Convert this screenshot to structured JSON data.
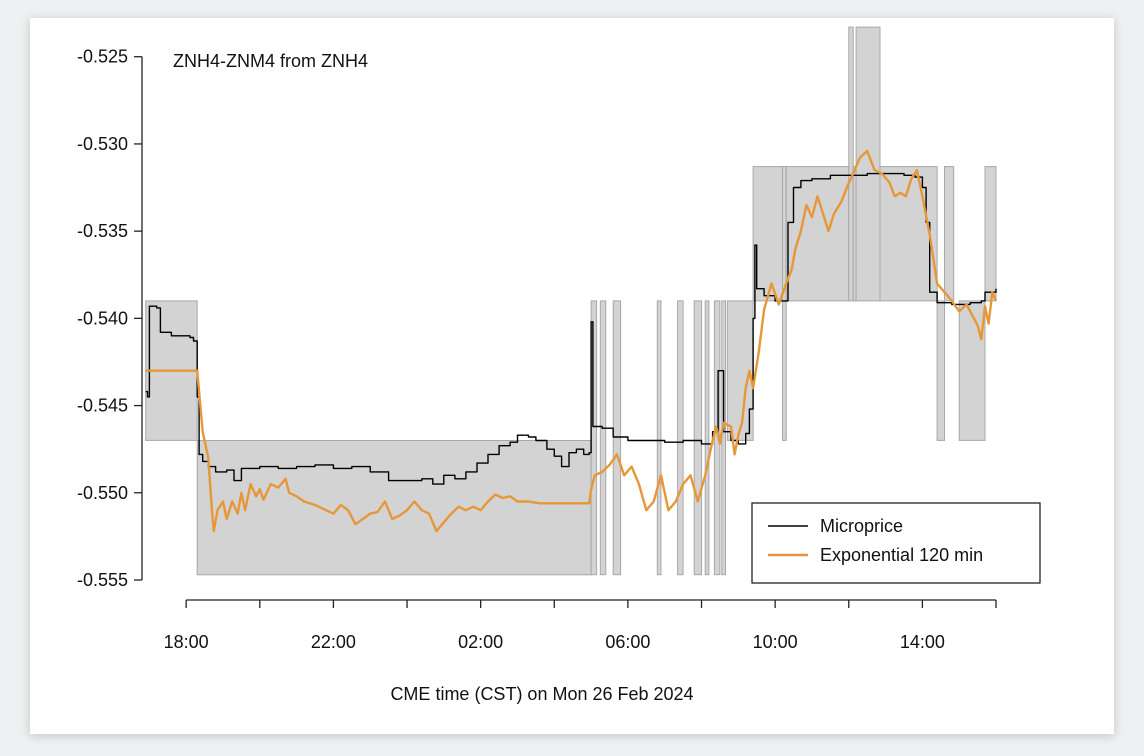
{
  "chart_data": {
    "type": "line",
    "title": "ZNH4-ZNM4 from ZNH4",
    "xlabel": "CME time (CST) on Mon 26 Feb 2024",
    "ylabel": "",
    "x_unit": "hours since 16:00 Sun 25 Feb 2024 CST",
    "xlim": [
      0.8,
      24.0
    ],
    "ylim": [
      -0.555,
      -0.5245
    ],
    "x_ticks": [
      2,
      4,
      6,
      8,
      10,
      12,
      14,
      16,
      18,
      20,
      22,
      24
    ],
    "x_tick_labels": [
      {
        "x": 2,
        "label": "18:00"
      },
      {
        "x": 6,
        "label": "22:00"
      },
      {
        "x": 10,
        "label": "02:00"
      },
      {
        "x": 14,
        "label": "06:00"
      },
      {
        "x": 18,
        "label": "10:00"
      },
      {
        "x": 22,
        "label": "14:00"
      }
    ],
    "y_ticks": [
      -0.555,
      -0.55,
      -0.545,
      -0.54,
      -0.535,
      -0.53,
      -0.525
    ],
    "y_tick_labels": [
      "-0.555",
      "-0.550",
      "-0.545",
      "-0.540",
      "-0.535",
      "-0.530",
      "-0.525"
    ],
    "grid": false,
    "legend": {
      "position": "bottom-right",
      "entries": [
        {
          "name": "Microprice",
          "color": "#000000"
        },
        {
          "name": "Exponential 120 min",
          "color": "#e69838"
        }
      ]
    },
    "bid_ask_bands": [
      {
        "x0": 0.9,
        "x1": 2.3,
        "y0": -0.547,
        "y1": -0.539
      },
      {
        "x0": 2.3,
        "x1": 13.0,
        "y0": -0.5547,
        "y1": -0.547
      },
      {
        "x0": 13.0,
        "x1": 13.15,
        "y0": -0.5547,
        "y1": -0.539
      },
      {
        "x0": 13.25,
        "x1": 13.4,
        "y0": -0.5547,
        "y1": -0.539
      },
      {
        "x0": 13.6,
        "x1": 13.8,
        "y0": -0.5547,
        "y1": -0.539
      },
      {
        "x0": 14.8,
        "x1": 14.9,
        "y0": -0.5547,
        "y1": -0.539
      },
      {
        "x0": 15.35,
        "x1": 15.5,
        "y0": -0.5547,
        "y1": -0.539
      },
      {
        "x0": 15.8,
        "x1": 16.0,
        "y0": -0.5547,
        "y1": -0.539
      },
      {
        "x0": 16.1,
        "x1": 16.2,
        "y0": -0.5547,
        "y1": -0.539
      },
      {
        "x0": 16.35,
        "x1": 16.5,
        "y0": -0.5547,
        "y1": -0.539
      },
      {
        "x0": 16.55,
        "x1": 16.65,
        "y0": -0.5547,
        "y1": -0.539
      },
      {
        "x0": 16.7,
        "x1": 17.4,
        "y0": -0.547,
        "y1": -0.539
      },
      {
        "x0": 17.4,
        "x1": 18.2,
        "y0": -0.539,
        "y1": -0.5313
      },
      {
        "x0": 18.2,
        "x1": 18.3,
        "y0": -0.547,
        "y1": -0.5313
      },
      {
        "x0": 18.3,
        "x1": 20.0,
        "y0": -0.539,
        "y1": -0.5313
      },
      {
        "x0": 20.0,
        "x1": 20.12,
        "y0": -0.539,
        "y1": -0.5233
      },
      {
        "x0": 20.12,
        "x1": 20.2,
        "y0": -0.539,
        "y1": -0.5313
      },
      {
        "x0": 20.2,
        "x1": 20.85,
        "y0": -0.539,
        "y1": -0.5233
      },
      {
        "x0": 20.85,
        "x1": 22.4,
        "y0": -0.539,
        "y1": -0.5313
      },
      {
        "x0": 22.4,
        "x1": 22.6,
        "y0": -0.547,
        "y1": -0.539
      },
      {
        "x0": 22.6,
        "x1": 22.85,
        "y0": -0.539,
        "y1": -0.5313
      },
      {
        "x0": 23.0,
        "x1": 23.7,
        "y0": -0.547,
        "y1": -0.539
      },
      {
        "x0": 23.7,
        "x1": 24.0,
        "y0": -0.539,
        "y1": -0.5313
      }
    ],
    "series": [
      {
        "name": "Microprice",
        "color": "#000000",
        "points": [
          [
            0.9,
            -0.5442
          ],
          [
            0.95,
            -0.5445
          ],
          [
            1.0,
            -0.5393
          ],
          [
            1.2,
            -0.5394
          ],
          [
            1.3,
            -0.5408
          ],
          [
            1.6,
            -0.541
          ],
          [
            2.1,
            -0.5411
          ],
          [
            2.2,
            -0.5413
          ],
          [
            2.3,
            -0.5445
          ],
          [
            2.35,
            -0.5478
          ],
          [
            2.45,
            -0.5482
          ],
          [
            2.6,
            -0.5485
          ],
          [
            2.8,
            -0.5488
          ],
          [
            3.1,
            -0.5487
          ],
          [
            3.3,
            -0.5493
          ],
          [
            3.5,
            -0.5486
          ],
          [
            4.0,
            -0.5485
          ],
          [
            4.5,
            -0.5486
          ],
          [
            5.0,
            -0.5485
          ],
          [
            5.5,
            -0.5484
          ],
          [
            6.0,
            -0.5486
          ],
          [
            6.5,
            -0.5485
          ],
          [
            7.0,
            -0.5488
          ],
          [
            7.5,
            -0.5493
          ],
          [
            8.0,
            -0.5493
          ],
          [
            8.4,
            -0.5492
          ],
          [
            8.7,
            -0.5495
          ],
          [
            9.0,
            -0.549
          ],
          [
            9.3,
            -0.5492
          ],
          [
            9.6,
            -0.5488
          ],
          [
            9.9,
            -0.5483
          ],
          [
            10.2,
            -0.5478
          ],
          [
            10.5,
            -0.5473
          ],
          [
            10.8,
            -0.5471
          ],
          [
            11.0,
            -0.5467
          ],
          [
            11.3,
            -0.5468
          ],
          [
            11.5,
            -0.547
          ],
          [
            11.8,
            -0.5475
          ],
          [
            12.0,
            -0.5479
          ],
          [
            12.2,
            -0.5485
          ],
          [
            12.4,
            -0.5477
          ],
          [
            12.6,
            -0.5475
          ],
          [
            12.8,
            -0.5478
          ],
          [
            12.95,
            -0.5477
          ],
          [
            13.0,
            -0.5402
          ],
          [
            13.05,
            -0.5462
          ],
          [
            13.3,
            -0.5463
          ],
          [
            13.6,
            -0.5468
          ],
          [
            14.0,
            -0.547
          ],
          [
            14.5,
            -0.547
          ],
          [
            15.0,
            -0.5471
          ],
          [
            15.5,
            -0.547
          ],
          [
            16.0,
            -0.5472
          ],
          [
            16.3,
            -0.5465
          ],
          [
            16.45,
            -0.543
          ],
          [
            16.6,
            -0.5465
          ],
          [
            16.8,
            -0.547
          ],
          [
            17.0,
            -0.5472
          ],
          [
            17.2,
            -0.5466
          ],
          [
            17.3,
            -0.5452
          ],
          [
            17.4,
            -0.54
          ],
          [
            17.45,
            -0.5358
          ],
          [
            17.5,
            -0.5383
          ],
          [
            17.7,
            -0.5387
          ],
          [
            18.0,
            -0.539
          ],
          [
            18.2,
            -0.539
          ],
          [
            18.35,
            -0.5345
          ],
          [
            18.5,
            -0.5325
          ],
          [
            18.7,
            -0.5321
          ],
          [
            19.0,
            -0.532
          ],
          [
            19.5,
            -0.5318
          ],
          [
            20.0,
            -0.5318
          ],
          [
            20.5,
            -0.5317
          ],
          [
            21.0,
            -0.5317
          ],
          [
            21.5,
            -0.5318
          ],
          [
            21.8,
            -0.5319
          ],
          [
            22.0,
            -0.5325
          ],
          [
            22.1,
            -0.5345
          ],
          [
            22.2,
            -0.5385
          ],
          [
            22.4,
            -0.5391
          ],
          [
            22.8,
            -0.5392
          ],
          [
            23.0,
            -0.5392
          ],
          [
            23.3,
            -0.5391
          ],
          [
            23.6,
            -0.539
          ],
          [
            23.7,
            -0.5385
          ],
          [
            24.0,
            -0.5383
          ]
        ]
      },
      {
        "name": "Exponential 120 min",
        "color": "#e69838",
        "points": [
          [
            0.9,
            -0.543
          ],
          [
            2.3,
            -0.543
          ],
          [
            2.45,
            -0.5465
          ],
          [
            2.6,
            -0.548
          ],
          [
            2.7,
            -0.551
          ],
          [
            2.75,
            -0.5522
          ],
          [
            2.85,
            -0.551
          ],
          [
            3.0,
            -0.5505
          ],
          [
            3.1,
            -0.5515
          ],
          [
            3.25,
            -0.5505
          ],
          [
            3.4,
            -0.5512
          ],
          [
            3.5,
            -0.55
          ],
          [
            3.6,
            -0.551
          ],
          [
            3.75,
            -0.5495
          ],
          [
            3.9,
            -0.5502
          ],
          [
            4.0,
            -0.5498
          ],
          [
            4.1,
            -0.5504
          ],
          [
            4.3,
            -0.5495
          ],
          [
            4.5,
            -0.5497
          ],
          [
            4.7,
            -0.5492
          ],
          [
            4.8,
            -0.55
          ],
          [
            5.0,
            -0.5502
          ],
          [
            5.2,
            -0.5505
          ],
          [
            5.5,
            -0.5507
          ],
          [
            5.8,
            -0.551
          ],
          [
            6.0,
            -0.5512
          ],
          [
            6.2,
            -0.5507
          ],
          [
            6.4,
            -0.551
          ],
          [
            6.6,
            -0.5518
          ],
          [
            6.8,
            -0.5515
          ],
          [
            7.0,
            -0.5512
          ],
          [
            7.2,
            -0.5511
          ],
          [
            7.4,
            -0.5505
          ],
          [
            7.6,
            -0.5515
          ],
          [
            7.8,
            -0.5513
          ],
          [
            8.0,
            -0.551
          ],
          [
            8.2,
            -0.5505
          ],
          [
            8.4,
            -0.551
          ],
          [
            8.6,
            -0.5512
          ],
          [
            8.8,
            -0.5522
          ],
          [
            9.0,
            -0.5517
          ],
          [
            9.2,
            -0.5512
          ],
          [
            9.4,
            -0.5508
          ],
          [
            9.6,
            -0.551
          ],
          [
            9.8,
            -0.5508
          ],
          [
            10.0,
            -0.551
          ],
          [
            10.2,
            -0.5505
          ],
          [
            10.4,
            -0.5501
          ],
          [
            10.6,
            -0.5503
          ],
          [
            10.8,
            -0.5502
          ],
          [
            11.0,
            -0.5505
          ],
          [
            11.3,
            -0.5505
          ],
          [
            11.6,
            -0.5506
          ],
          [
            12.0,
            -0.5506
          ],
          [
            12.5,
            -0.5506
          ],
          [
            12.95,
            -0.5506
          ],
          [
            13.0,
            -0.5498
          ],
          [
            13.1,
            -0.549
          ],
          [
            13.3,
            -0.5488
          ],
          [
            13.5,
            -0.5484
          ],
          [
            13.7,
            -0.5478
          ],
          [
            13.9,
            -0.549
          ],
          [
            14.1,
            -0.5485
          ],
          [
            14.3,
            -0.5495
          ],
          [
            14.5,
            -0.551
          ],
          [
            14.7,
            -0.5505
          ],
          [
            14.9,
            -0.549
          ],
          [
            15.1,
            -0.551
          ],
          [
            15.3,
            -0.5505
          ],
          [
            15.5,
            -0.5495
          ],
          [
            15.7,
            -0.549
          ],
          [
            15.9,
            -0.5505
          ],
          [
            16.1,
            -0.549
          ],
          [
            16.3,
            -0.547
          ],
          [
            16.4,
            -0.5462
          ],
          [
            16.5,
            -0.5472
          ],
          [
            16.6,
            -0.546
          ],
          [
            16.8,
            -0.5462
          ],
          [
            16.9,
            -0.5478
          ],
          [
            17.0,
            -0.5467
          ],
          [
            17.1,
            -0.546
          ],
          [
            17.2,
            -0.544
          ],
          [
            17.3,
            -0.543
          ],
          [
            17.4,
            -0.544
          ],
          [
            17.55,
            -0.542
          ],
          [
            17.7,
            -0.5395
          ],
          [
            17.9,
            -0.538
          ],
          [
            18.1,
            -0.5392
          ],
          [
            18.3,
            -0.538
          ],
          [
            18.45,
            -0.5372
          ],
          [
            18.55,
            -0.536
          ],
          [
            18.7,
            -0.535
          ],
          [
            18.85,
            -0.5335
          ],
          [
            19.0,
            -0.5342
          ],
          [
            19.15,
            -0.533
          ],
          [
            19.3,
            -0.534
          ],
          [
            19.45,
            -0.535
          ],
          [
            19.6,
            -0.534
          ],
          [
            19.8,
            -0.5333
          ],
          [
            19.95,
            -0.5325
          ],
          [
            20.1,
            -0.5318
          ],
          [
            20.3,
            -0.5308
          ],
          [
            20.5,
            -0.5304
          ],
          [
            20.7,
            -0.5315
          ],
          [
            20.9,
            -0.5317
          ],
          [
            21.1,
            -0.5322
          ],
          [
            21.25,
            -0.533
          ],
          [
            21.4,
            -0.5328
          ],
          [
            21.55,
            -0.533
          ],
          [
            21.7,
            -0.532
          ],
          [
            21.85,
            -0.5315
          ],
          [
            22.0,
            -0.533
          ],
          [
            22.2,
            -0.5352
          ],
          [
            22.4,
            -0.538
          ],
          [
            22.6,
            -0.5385
          ],
          [
            22.8,
            -0.539
          ],
          [
            23.0,
            -0.5396
          ],
          [
            23.2,
            -0.5392
          ],
          [
            23.35,
            -0.5398
          ],
          [
            23.5,
            -0.5404
          ],
          [
            23.6,
            -0.5412
          ],
          [
            23.7,
            -0.5393
          ],
          [
            23.8,
            -0.5403
          ],
          [
            23.9,
            -0.5385
          ],
          [
            24.0,
            -0.539
          ]
        ]
      }
    ]
  }
}
